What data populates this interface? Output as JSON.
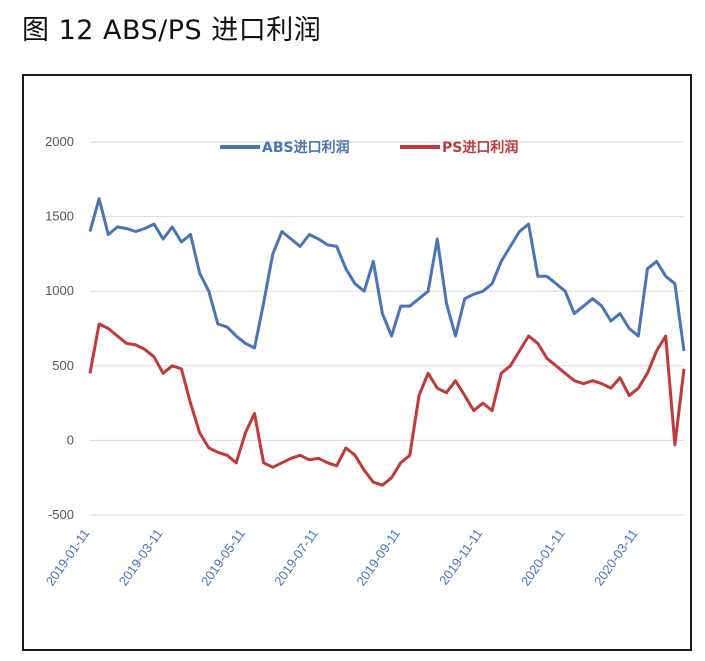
{
  "title": "图 12 ABS/PS 进口利润",
  "chart_data": {
    "type": "line",
    "x": [
      "2019-01-11",
      "2019-01-18",
      "2019-01-25",
      "2019-02-01",
      "2019-02-08",
      "2019-02-15",
      "2019-02-22",
      "2019-03-01",
      "2019-03-08",
      "2019-03-15",
      "2019-03-22",
      "2019-03-29",
      "2019-04-05",
      "2019-04-12",
      "2019-04-19",
      "2019-04-26",
      "2019-05-03",
      "2019-05-10",
      "2019-05-17",
      "2019-05-24",
      "2019-05-31",
      "2019-06-07",
      "2019-06-14",
      "2019-06-21",
      "2019-06-28",
      "2019-07-05",
      "2019-07-12",
      "2019-07-19",
      "2019-07-26",
      "2019-08-02",
      "2019-08-09",
      "2019-08-16",
      "2019-08-23",
      "2019-08-30",
      "2019-09-06",
      "2019-09-13",
      "2019-09-20",
      "2019-09-27",
      "2019-10-04",
      "2019-10-11",
      "2019-10-18",
      "2019-10-25",
      "2019-11-01",
      "2019-11-08",
      "2019-11-15",
      "2019-11-22",
      "2019-11-29",
      "2019-12-06",
      "2019-12-13",
      "2019-12-20",
      "2019-12-27",
      "2020-01-03",
      "2020-01-10",
      "2020-01-17",
      "2020-01-24",
      "2020-01-31",
      "2020-02-07",
      "2020-02-14",
      "2020-02-21",
      "2020-02-28",
      "2020-03-06",
      "2020-03-13",
      "2020-03-20",
      "2020-03-27",
      "2020-04-03",
      "2020-04-10"
    ],
    "series": [
      {
        "name": "ABS进口利润",
        "color": "#4a74b4",
        "values": [
          1400,
          1620,
          1380,
          1430,
          1420,
          1400,
          1420,
          1450,
          1350,
          1430,
          1330,
          1380,
          1120,
          1000,
          780,
          760,
          700,
          650,
          620,
          920,
          1250,
          1400,
          1350,
          1300,
          1380,
          1350,
          1310,
          1300,
          1150,
          1050,
          1000,
          1200,
          850,
          700,
          900,
          900,
          950,
          1000,
          1350,
          920,
          700,
          950,
          980,
          1000,
          1050,
          1200,
          1300,
          1400,
          1450,
          1100,
          1100,
          1050,
          1000,
          850,
          900,
          950,
          900,
          800,
          850,
          750,
          700,
          1150,
          1200,
          1100,
          1050,
          600
        ]
      },
      {
        "name": "PS进口利润",
        "color": "#c0393b",
        "values": [
          450,
          780,
          750,
          700,
          650,
          640,
          610,
          560,
          450,
          500,
          480,
          250,
          50,
          -50,
          -80,
          -100,
          -150,
          50,
          180,
          -150,
          -180,
          -150,
          -120,
          -100,
          -130,
          -120,
          -150,
          -170,
          -50,
          -100,
          -200,
          -280,
          -300,
          -250,
          -150,
          -100,
          300,
          450,
          350,
          320,
          400,
          300,
          200,
          250,
          200,
          450,
          500,
          600,
          700,
          650,
          550,
          500,
          450,
          400,
          380,
          400,
          380,
          350,
          420,
          300,
          350,
          450,
          600,
          700,
          -30,
          480
        ]
      }
    ],
    "ylim": [
      -500,
      2000
    ],
    "yticks": [
      -500,
      0,
      500,
      1000,
      1500,
      2000
    ],
    "xtick_labels": [
      "2019-01-11",
      "2019-03-11",
      "2019-05-11",
      "2019-07-11",
      "2019-09-11",
      "2019-11-11",
      "2020-01-11",
      "2020-03-11"
    ],
    "xtick_positions": [
      0,
      8,
      17,
      25,
      34,
      43,
      52,
      60
    ],
    "grid": true,
    "legend_position": "top-center"
  }
}
